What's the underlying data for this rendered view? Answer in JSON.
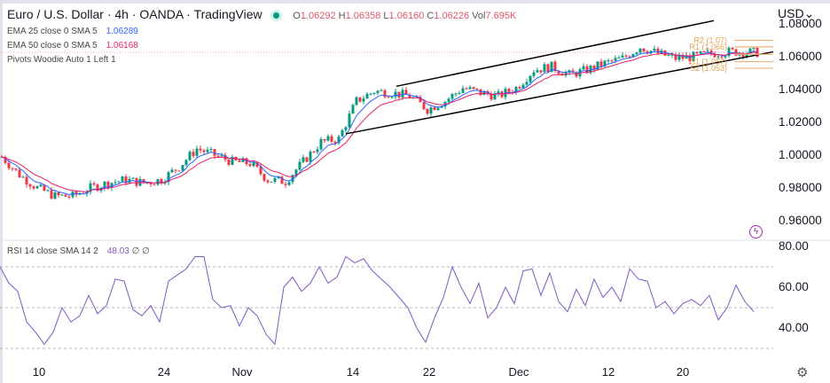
{
  "header": {
    "title": "Euro / U.S. Dollar · 4h · OANDA · TradingView",
    "ohlc": {
      "o_label": "O",
      "o": "1.06292",
      "h_label": "H",
      "h": "1.06358",
      "l_label": "L",
      "l": "1.06160",
      "c_label": "C",
      "c": "1.06226",
      "vol_label": "Vol",
      "vol": "7.695K"
    },
    "ema25": {
      "label": "EMA 25 close 0 SMA 5",
      "value": "1.06289"
    },
    "ema50": {
      "label": "EMA 50 close 0 SMA 5",
      "value": "1.06168"
    },
    "pivots": {
      "label": "Pivots Woodie Auto 1 Left 1"
    }
  },
  "rsi_legend": {
    "label": "RSI 14 close SMA 14 2",
    "value": "48.03",
    "extra": "∅ ∅"
  },
  "currency": "USD",
  "settings_icon": "gear-icon",
  "colors": {
    "up": "#089981",
    "down": "#f23645",
    "ema25": "#2962ff",
    "ema50": "#e91e63",
    "rsi": "#7e57c2",
    "pivot": "#f0b27a",
    "trend": "#000000"
  },
  "chart_data": [
    {
      "type": "candlestick",
      "title": "Euro / U.S. Dollar · 4h · OANDA · TradingView",
      "ylabel": "USD",
      "ylim": [
        0.955,
        1.085
      ],
      "yticks": [
        "1.08000",
        "1.06000",
        "1.04000",
        "1.02000",
        "1.00000",
        "0.98000",
        "0.96000"
      ],
      "ytick_values": [
        1.08,
        1.06,
        1.04,
        1.02,
        1.0,
        0.98,
        0.96
      ],
      "xticks": [
        {
          "label": "10",
          "index": 2.2
        },
        {
          "label": "24",
          "index": 9.25
        },
        {
          "label": "Nov",
          "index": 13.65
        },
        {
          "label": "14",
          "index": 19.9
        },
        {
          "label": "22",
          "index": 24.2
        },
        {
          "label": "Dec",
          "index": 29.25
        },
        {
          "label": "12",
          "index": 34.3
        },
        {
          "label": "20",
          "index": 38.5
        }
      ],
      "close_approx": [
        0.999,
        0.988,
        0.98,
        0.975,
        0.975,
        0.98,
        0.983,
        0.985,
        0.983,
        0.985,
        0.993,
        1.004,
        1.0,
        0.996,
        0.995,
        0.985,
        0.984,
        0.996,
        1.008,
        1.01,
        1.033,
        1.039,
        1.038,
        1.036,
        1.028,
        1.033,
        1.041,
        1.038,
        1.036,
        1.041,
        1.052,
        1.054,
        1.049,
        1.052,
        1.056,
        1.059,
        1.066,
        1.062,
        1.059,
        1.06,
        1.062,
        1.063,
        1.063,
        1.062
      ],
      "series": [
        {
          "name": "EMA 25 close 0 SMA 5"
        },
        {
          "name": "EMA 50 close 0 SMA 5"
        }
      ],
      "trendlines": [
        {
          "from": [
            22.35,
            1.042
          ],
          "to": [
            40.25,
            1.082
          ]
        },
        {
          "from": [
            19.5,
            1.013
          ],
          "to": [
            43.6,
            1.063
          ]
        }
      ],
      "pivots": [
        {
          "label": "R2 (1.07)",
          "value": 1.07
        },
        {
          "label": "R1 (1.066)",
          "value": 1.066
        },
        {
          "label": "P",
          "value": 1.0615
        },
        {
          "label": "S1 (1.057)",
          "value": 1.057
        },
        {
          "label": "S2 (1.053)",
          "value": 1.053
        }
      ]
    },
    {
      "type": "line",
      "title": "RSI 14 close SMA 14 2",
      "ylim": [
        25,
        85
      ],
      "yticks": [
        "80.00",
        "60.00",
        "40.00"
      ],
      "ytick_values": [
        80,
        60,
        40
      ],
      "bands": [
        70,
        50,
        30
      ],
      "values": [
        70,
        62,
        58,
        43,
        38,
        32,
        38,
        50,
        43,
        46,
        56,
        47,
        51,
        64,
        63,
        49,
        46,
        51,
        43,
        63,
        66,
        69,
        75,
        75,
        54,
        50,
        51,
        41,
        50,
        46,
        37,
        32,
        60,
        65,
        58,
        62,
        70,
        62,
        65,
        75,
        72,
        74,
        68,
        64,
        60,
        55,
        50,
        40,
        33,
        45,
        55,
        70,
        60,
        52,
        62,
        45,
        50,
        60,
        52,
        68,
        69,
        56,
        67,
        53,
        48,
        59,
        51,
        64,
        55,
        60,
        53,
        69,
        64,
        63,
        50,
        53,
        47,
        52,
        54,
        51,
        56,
        44,
        50,
        61,
        53,
        48
      ]
    }
  ]
}
